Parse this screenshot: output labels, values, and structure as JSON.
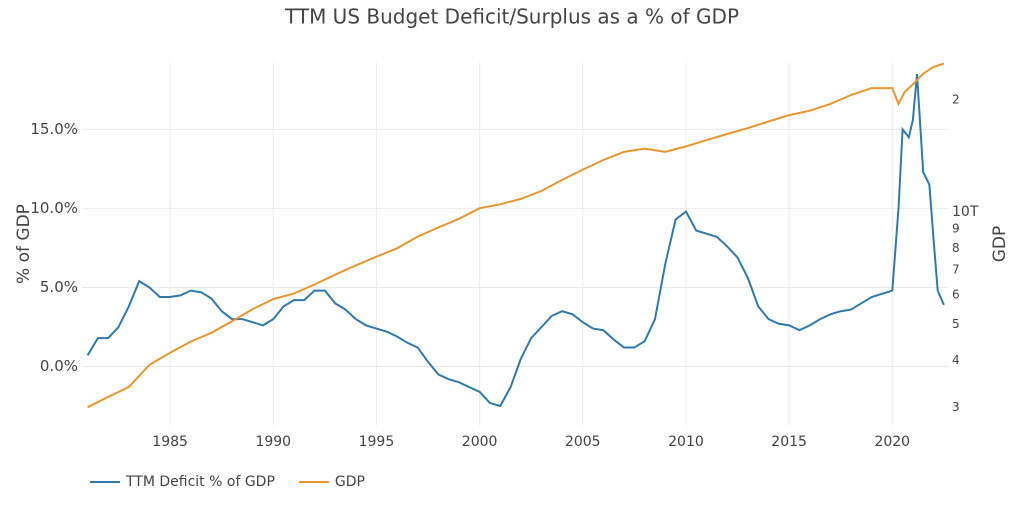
{
  "chart_data": {
    "type": "line",
    "title": "TTM US Budget Deficit/Surplus as a % of GDP",
    "ylabel": "% of GDP",
    "y2label": "GDP",
    "xlim": [
      1980.73,
      2022.7
    ],
    "xticks": [
      1985,
      1990,
      1995,
      2000,
      2005,
      2010,
      2015,
      2020
    ],
    "ylim": [
      -3.7,
      19.2
    ],
    "yticks": [
      {
        "value": 0,
        "label": "0.0%"
      },
      {
        "value": 5,
        "label": "5.0%"
      },
      {
        "value": 10,
        "label": "10.0%"
      },
      {
        "value": 15,
        "label": "15.0%"
      }
    ],
    "y2lim": [
      2.69,
      25.1
    ],
    "y2log": true,
    "y2ticks": [
      3,
      4,
      5,
      6,
      7,
      8,
      9,
      {
        "value": 10,
        "label": "10T"
      },
      {
        "value": 20,
        "label": "2"
      }
    ],
    "grid": true,
    "legend": "bottom-left",
    "series": [
      {
        "name": "TTM Deficit % of GDP",
        "color": "#2e7bab",
        "axis": "y",
        "x": [
          1981,
          1981.5,
          1982,
          1982.5,
          1983,
          1983.5,
          1984,
          1984.5,
          1985,
          1985.5,
          1986,
          1986.5,
          1987,
          1987.5,
          1988,
          1988.5,
          1989,
          1989.5,
          1990,
          1990.5,
          1991,
          1991.5,
          1992,
          1992.5,
          1993,
          1993.5,
          1994,
          1994.5,
          1995,
          1995.5,
          1996,
          1996.5,
          1997,
          1997.5,
          1998,
          1998.5,
          1999,
          1999.5,
          2000,
          2000.5,
          2001,
          2001.5,
          2002,
          2002.5,
          2003,
          2003.5,
          2004,
          2004.5,
          2005,
          2005.5,
          2006,
          2006.5,
          2007,
          2007.5,
          2008,
          2008.5,
          2009,
          2009.5,
          2010,
          2010.5,
          2011,
          2011.5,
          2012,
          2012.5,
          2013,
          2013.5,
          2014,
          2014.5,
          2015,
          2015.5,
          2016,
          2016.5,
          2017,
          2017.5,
          2018,
          2018.5,
          2019,
          2019.5,
          2020,
          2020.3,
          2020.5,
          2020.8,
          2021,
          2021.2,
          2021.5,
          2021.8,
          2022,
          2022.2,
          2022.5
        ],
        "values": [
          0.7,
          1.8,
          1.8,
          2.5,
          3.8,
          5.4,
          5.0,
          4.4,
          4.4,
          4.5,
          4.8,
          4.7,
          4.3,
          3.5,
          3.0,
          3.0,
          2.8,
          2.6,
          3.0,
          3.8,
          4.2,
          4.2,
          4.8,
          4.8,
          4.0,
          3.6,
          3.0,
          2.6,
          2.4,
          2.2,
          1.9,
          1.5,
          1.2,
          0.3,
          -0.5,
          -0.8,
          -1.0,
          -1.3,
          -1.6,
          -2.3,
          -2.5,
          -1.3,
          0.5,
          1.8,
          2.5,
          3.2,
          3.5,
          3.3,
          2.8,
          2.4,
          2.3,
          1.7,
          1.2,
          1.2,
          1.6,
          3.0,
          6.5,
          9.3,
          9.8,
          8.6,
          8.4,
          8.2,
          7.6,
          6.9,
          5.6,
          3.8,
          3.0,
          2.7,
          2.6,
          2.3,
          2.6,
          3.0,
          3.3,
          3.5,
          3.6,
          4.0,
          4.4,
          4.6,
          4.8,
          10.0,
          15.0,
          14.5,
          15.6,
          18.5,
          12.3,
          11.5,
          8.0,
          4.8,
          3.9
        ]
      },
      {
        "name": "GDP",
        "color": "#e8962e",
        "axis": "y2",
        "x": [
          1981,
          1982,
          1983,
          1984,
          1985,
          1986,
          1987,
          1988,
          1989,
          1990,
          1991,
          1992,
          1993,
          1994,
          1995,
          1996,
          1997,
          1998,
          1999,
          2000,
          2001,
          2002,
          2003,
          2004,
          2005,
          2006,
          2007,
          2008,
          2009,
          2010,
          2011,
          2012,
          2013,
          2014,
          2015,
          2016,
          2017,
          2018,
          2019,
          2020,
          2020.3,
          2020.6,
          2021,
          2021.5,
          2022,
          2022.5
        ],
        "values": [
          3.0,
          3.2,
          3.4,
          3.9,
          4.2,
          4.5,
          4.75,
          5.1,
          5.5,
          5.85,
          6.05,
          6.4,
          6.8,
          7.2,
          7.6,
          8.0,
          8.6,
          9.1,
          9.6,
          10.25,
          10.5,
          10.85,
          11.4,
          12.2,
          13.0,
          13.8,
          14.5,
          14.8,
          14.5,
          15.0,
          15.6,
          16.2,
          16.8,
          17.5,
          18.2,
          18.7,
          19.5,
          20.6,
          21.5,
          21.5,
          19.5,
          21.0,
          22.0,
          23.5,
          24.5,
          25.0
        ]
      }
    ]
  }
}
